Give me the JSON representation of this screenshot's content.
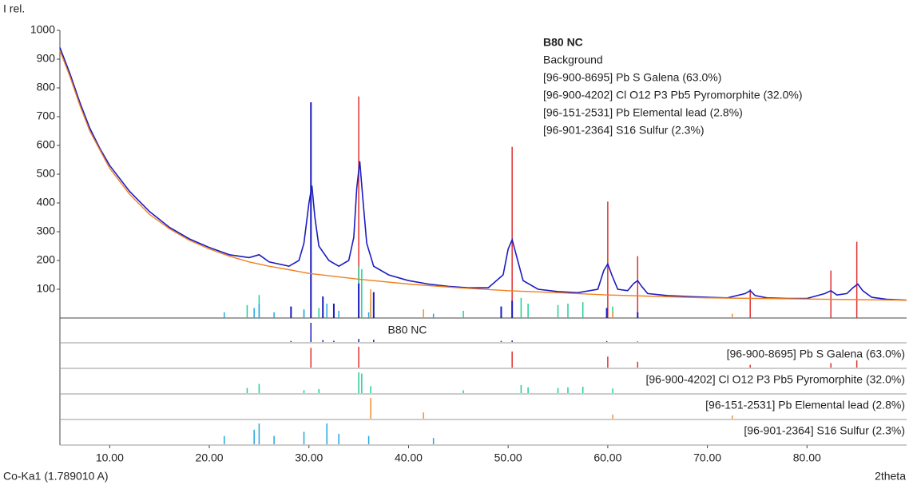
{
  "chart_data": {
    "type": "line",
    "y_label": "I rel.",
    "x_label": "2theta",
    "wavelength": "Co-Ka1 (1.789010 A)",
    "xlim": [
      5,
      90
    ],
    "ylim": [
      0,
      1000
    ],
    "xticks": [
      {
        "value": 10,
        "label": "10.00"
      },
      {
        "value": 20,
        "label": "20.00"
      },
      {
        "value": 30,
        "label": "30.00"
      },
      {
        "value": 40,
        "label": "40.00"
      },
      {
        "value": 50,
        "label": "50.00"
      },
      {
        "value": 60,
        "label": "60.00"
      },
      {
        "value": 70,
        "label": "70.00"
      },
      {
        "value": 80,
        "label": "80.00"
      }
    ],
    "yticks": [
      100,
      200,
      300,
      400,
      500,
      600,
      700,
      800,
      900,
      1000
    ],
    "series": [
      {
        "name": "B80 NC",
        "color": "#1c1cc0",
        "type": "line",
        "x": [
          5,
          6,
          7,
          8,
          9,
          10,
          12,
          14,
          16,
          18,
          20,
          22,
          24,
          25,
          26,
          28,
          29,
          29.5,
          30,
          30.3,
          30.6,
          31,
          32,
          33,
          34,
          34.5,
          34.8,
          35.1,
          35.4,
          35.8,
          36.5,
          38,
          40,
          42,
          44,
          46,
          48,
          49.5,
          50,
          50.4,
          50.8,
          51.5,
          53,
          55,
          57,
          59,
          59.6,
          60,
          60.4,
          61,
          62,
          62.6,
          63,
          63.4,
          64,
          66,
          68,
          70,
          72,
          73.8,
          74.3,
          74.8,
          76,
          78,
          80,
          81.8,
          82.4,
          83,
          84,
          84.6,
          85.1,
          85.6,
          86.5,
          88,
          90
        ],
        "values": [
          940,
          850,
          750,
          660,
          590,
          530,
          440,
          370,
          315,
          275,
          245,
          220,
          210,
          220,
          195,
          180,
          200,
          260,
          400,
          460,
          350,
          250,
          200,
          180,
          200,
          280,
          450,
          545,
          420,
          260,
          180,
          150,
          130,
          118,
          110,
          105,
          105,
          150,
          240,
          272,
          220,
          130,
          100,
          92,
          88,
          100,
          165,
          188,
          150,
          100,
          95,
          120,
          130,
          110,
          85,
          78,
          75,
          72,
          70,
          85,
          95,
          78,
          70,
          68,
          68,
          85,
          95,
          80,
          85,
          105,
          118,
          95,
          72,
          65,
          62
        ],
        "peak_x": [
          28.2,
          30.2,
          31.4,
          32.5,
          35.0,
          36.5,
          49.3,
          50.4,
          59.9,
          63.0
        ],
        "peak_values": [
          40,
          750,
          75,
          50,
          120,
          90,
          40,
          60,
          35,
          20
        ]
      },
      {
        "name": "Background",
        "color": "#f08020",
        "type": "line",
        "x": [
          5,
          6,
          7,
          8,
          10,
          12,
          14,
          16,
          18,
          20,
          22,
          24,
          26,
          28,
          30,
          35,
          40,
          45,
          50,
          55,
          60,
          65,
          70,
          75,
          80,
          85,
          90
        ],
        "values": [
          930,
          840,
          740,
          650,
          520,
          430,
          360,
          310,
          270,
          240,
          215,
          195,
          180,
          168,
          155,
          135,
          118,
          105,
          95,
          88,
          80,
          75,
          70,
          68,
          66,
          64,
          62
        ]
      },
      {
        "name": "[96-900-8695] Pb S  Galena (63.0%)",
        "color": "#e03030",
        "type": "stick",
        "x": [
          30.2,
          35.0,
          50.4,
          60.0,
          63.0,
          74.3,
          82.4,
          85.0
        ],
        "values": [
          730,
          770,
          595,
          405,
          215,
          100,
          165,
          265
        ]
      },
      {
        "name": "[96-900-4202] Cl O12 P3 Pb5  Pyromorphite (32.0%)",
        "color": "#20d090",
        "type": "stick",
        "x": [
          23.8,
          25.0,
          29.5,
          31.0,
          35.0,
          35.3,
          36.2,
          45.5,
          51.3,
          52.0,
          55.0,
          56.0,
          57.5,
          60.5
        ],
        "values": [
          45,
          80,
          25,
          35,
          180,
          170,
          60,
          25,
          70,
          50,
          45,
          50,
          55,
          40
        ]
      },
      {
        "name": "[96-151-2531] Pb Elemental lead (2.8%)",
        "color": "#f09030",
        "type": "stick",
        "x": [
          36.2,
          41.5,
          60.5,
          72.5
        ],
        "values": [
          100,
          30,
          20,
          15
        ]
      },
      {
        "name": "[96-901-2364] S16  Sulfur (2.3%)",
        "color": "#20a8e0",
        "type": "stick",
        "x": [
          21.5,
          24.5,
          25.0,
          26.5,
          29.5,
          31.8,
          33.0,
          36.0,
          42.5
        ],
        "values": [
          20,
          35,
          50,
          20,
          30,
          50,
          25,
          20,
          15
        ]
      }
    ]
  }
}
